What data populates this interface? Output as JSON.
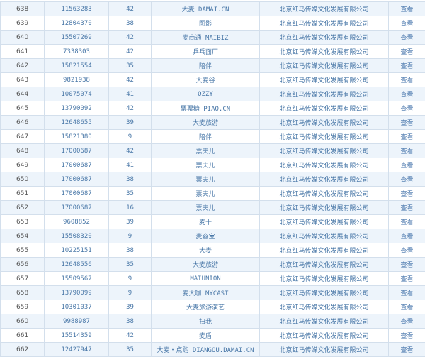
{
  "rows": [
    [
      "638",
      "11563283",
      "42",
      "大麦 DAMAI.CN",
      "北京红马传媒文化发展有限公司",
      "查看"
    ],
    [
      "639",
      "12804370",
      "38",
      "图影",
      "北京红马传媒文化发展有限公司",
      "查看"
    ],
    [
      "640",
      "15507269",
      "42",
      "麦商通 MAIBIZ",
      "北京红马传媒文化发展有限公司",
      "查看"
    ],
    [
      "641",
      "7338303",
      "42",
      "乒乓面厂",
      "北京红马传媒文化发展有限公司",
      "查看"
    ],
    [
      "642",
      "15821554",
      "35",
      "陪伴",
      "北京红马传媒文化发展有限公司",
      "查看"
    ],
    [
      "643",
      "9821938",
      "42",
      "大麦谷",
      "北京红马传媒文化发展有限公司",
      "查看"
    ],
    [
      "644",
      "10075074",
      "41",
      "OZZY",
      "北京红马传媒文化发展有限公司",
      "查看"
    ],
    [
      "645",
      "13790092",
      "42",
      "票票糖 PIAO.CN",
      "北京红马传媒文化发展有限公司",
      "查看"
    ],
    [
      "646",
      "12648655",
      "39",
      "大麦旅游",
      "北京红马传媒文化发展有限公司",
      "查看"
    ],
    [
      "647",
      "15821380",
      "9",
      "陪伴",
      "北京红马传媒文化发展有限公司",
      "查看"
    ],
    [
      "648",
      "17000687",
      "42",
      "票夫儿",
      "北京红马传媒文化发展有限公司",
      "查看"
    ],
    [
      "649",
      "17000687",
      "41",
      "票夫儿",
      "北京红马传媒文化发展有限公司",
      "查看"
    ],
    [
      "650",
      "17000687",
      "38",
      "票夫儿",
      "北京红马传媒文化发展有限公司",
      "查看"
    ],
    [
      "651",
      "17000687",
      "35",
      "票夫儿",
      "北京红马传媒文化发展有限公司",
      "查看"
    ],
    [
      "652",
      "17000687",
      "16",
      "票夫儿",
      "北京红马传媒文化发展有限公司",
      "查看"
    ],
    [
      "653",
      "9608852",
      "39",
      "麦十",
      "北京红马传媒文化发展有限公司",
      "查看"
    ],
    [
      "654",
      "15508320",
      "9",
      "麦容宝",
      "北京红马传媒文化发展有限公司",
      "查看"
    ],
    [
      "655",
      "10225151",
      "38",
      "大麦",
      "北京红马传媒文化发展有限公司",
      "查看"
    ],
    [
      "656",
      "12648556",
      "35",
      "大麦旅游",
      "北京红马传媒文化发展有限公司",
      "查看"
    ],
    [
      "657",
      "15509567",
      "9",
      "MAIUNION",
      "北京红马传媒文化发展有限公司",
      "查看"
    ],
    [
      "658",
      "13790099",
      "9",
      "麦大咖 MYCAST",
      "北京红马传媒文化发展有限公司",
      "查看"
    ],
    [
      "659",
      "10301037",
      "39",
      "大麦旅游演艺",
      "北京红马传媒文化发展有限公司",
      "查看"
    ],
    [
      "660",
      "9988987",
      "38",
      "扫我",
      "北京红马传媒文化发展有限公司",
      "查看"
    ],
    [
      "661",
      "15514359",
      "42",
      "麦盾",
      "北京红马传媒文化发展有限公司",
      "查看"
    ],
    [
      "662",
      "12427947",
      "35",
      "大麦・点购 DIANGOU.DAMAI.CN",
      "北京红马传媒文化发展有限公司",
      "查看"
    ]
  ],
  "colors": {
    "row_shade": "#edf4fb",
    "text": "#4a78a8",
    "border": "#d3dfec"
  }
}
